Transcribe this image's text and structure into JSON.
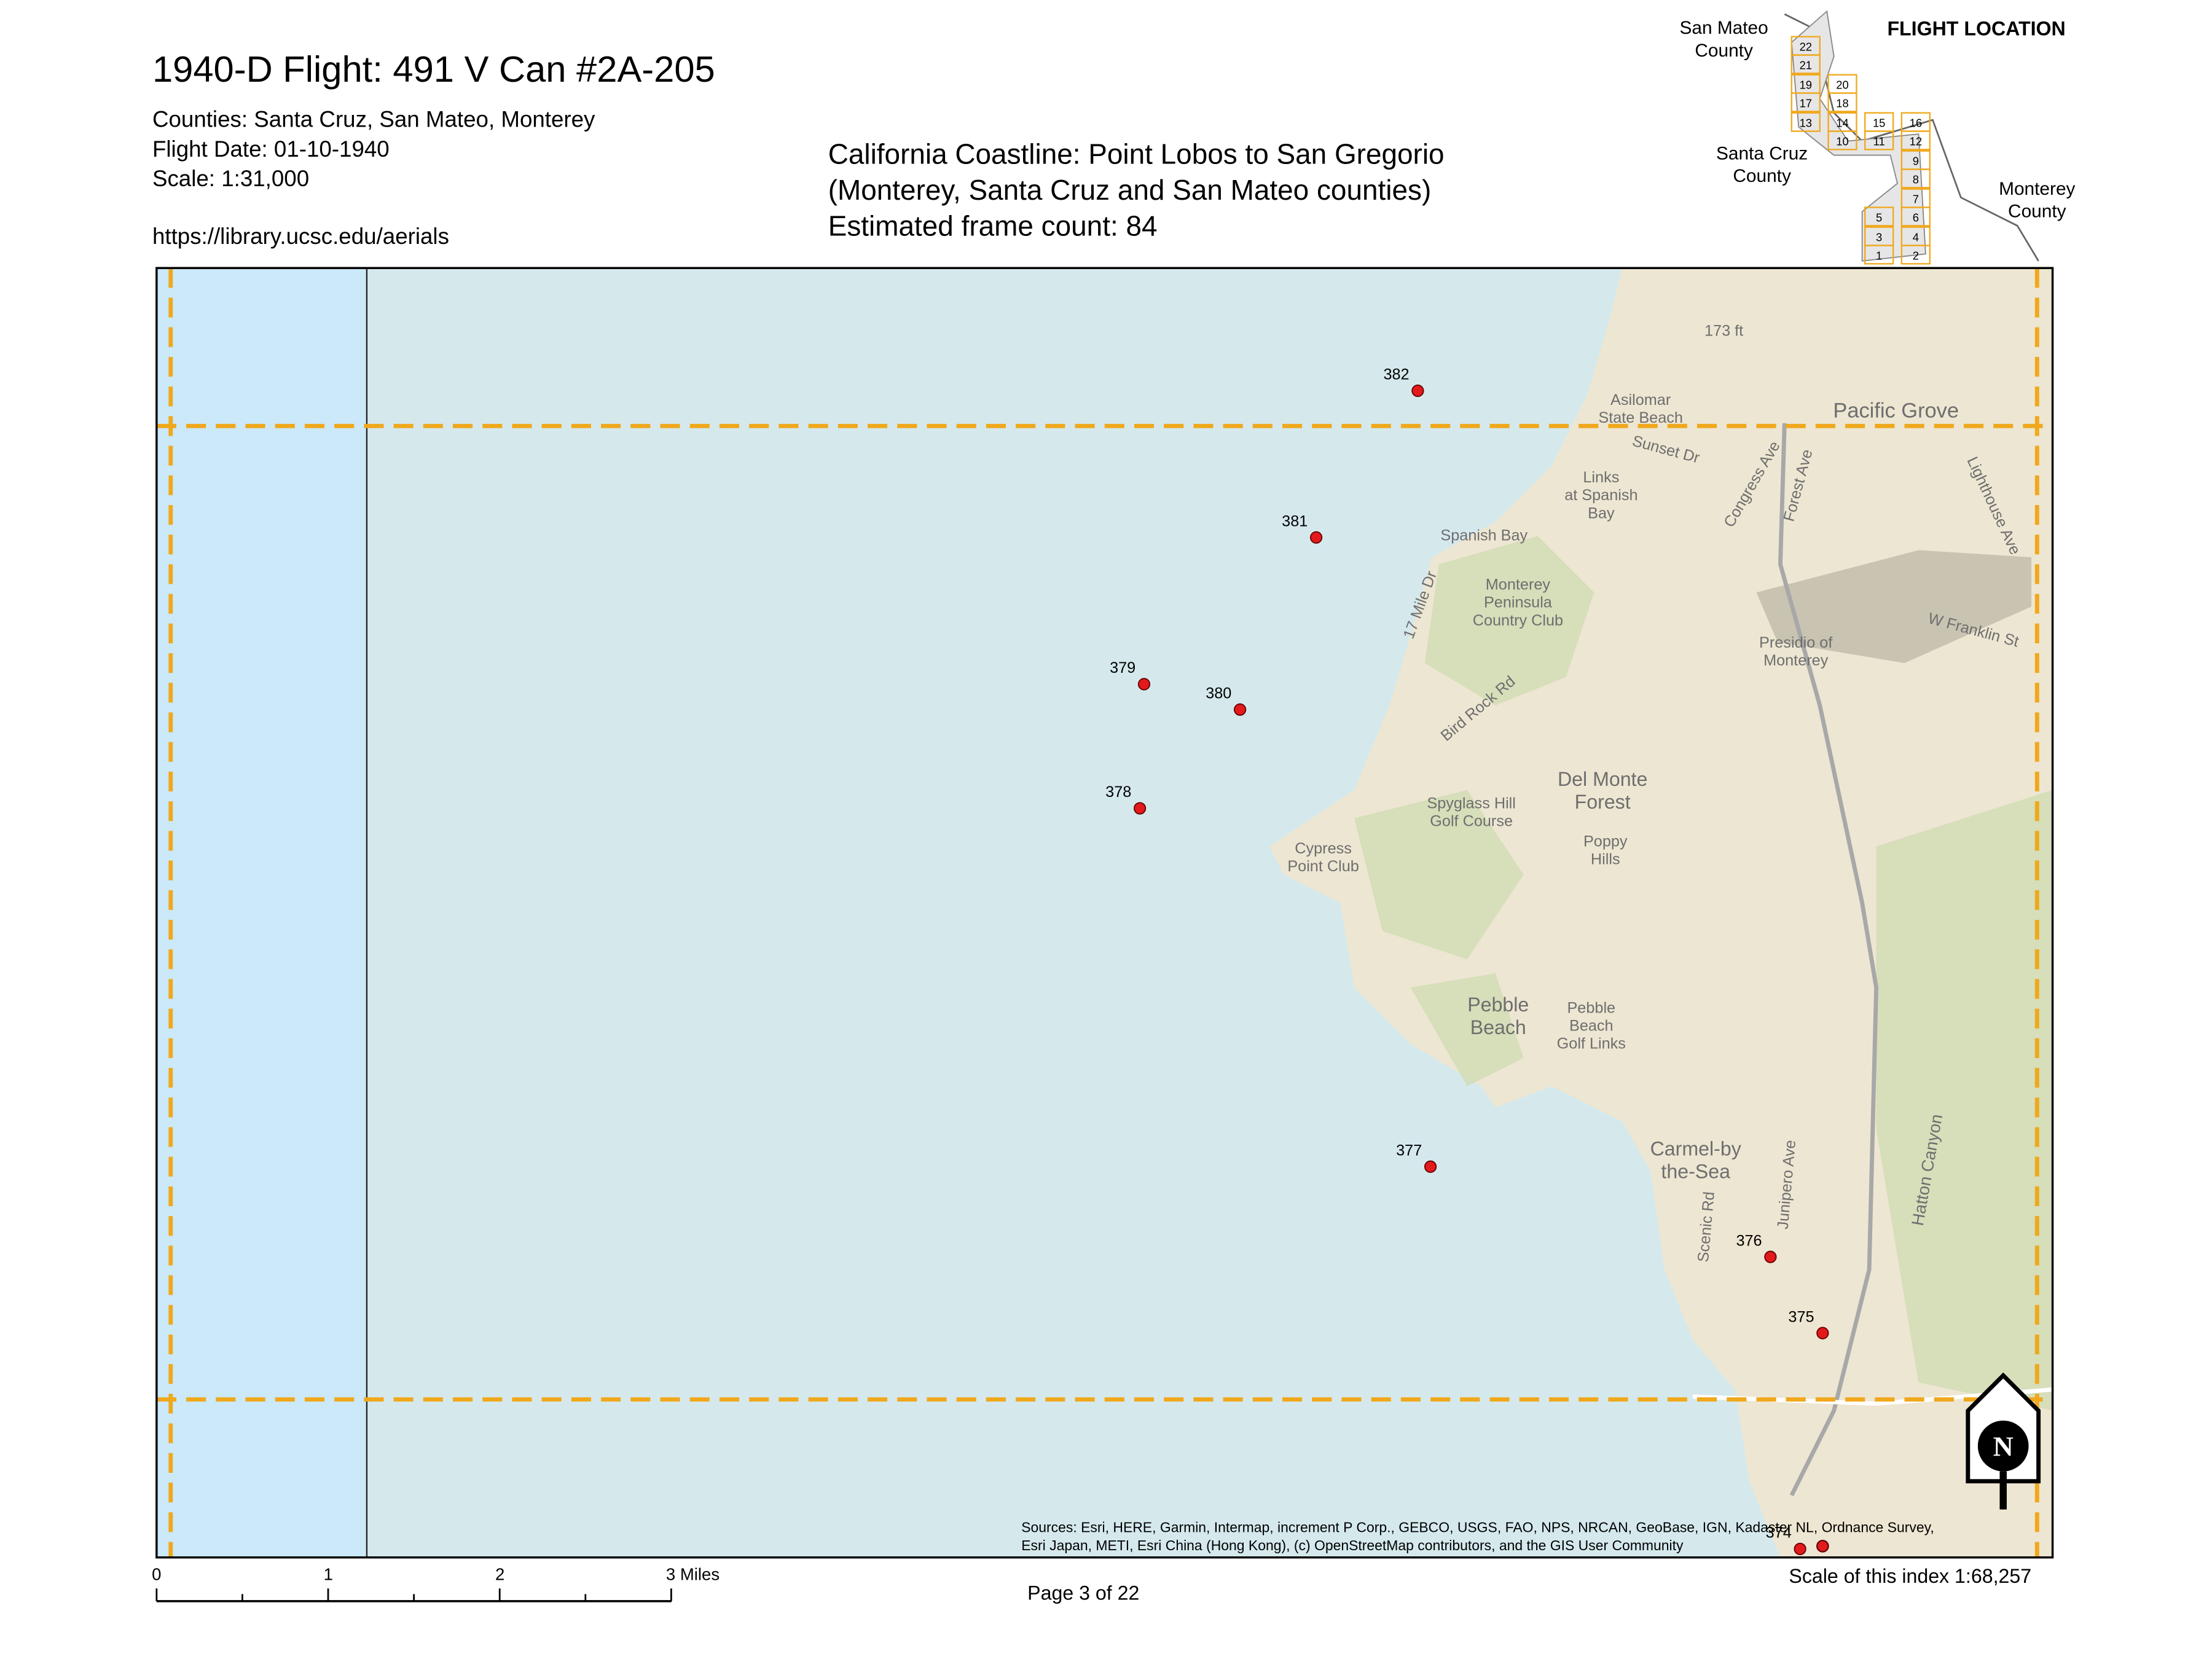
{
  "header": {
    "title": "1940-D Flight: 491 V Can #2A-205",
    "lines": [
      "Counties: Santa Cruz, San Mateo, Monterey",
      "Flight Date: 01-10-1940",
      "Scale: 1:31,000"
    ],
    "url": "https://library.ucsc.edu/aerials"
  },
  "description": [
    "California Coastline: Point Lobos to San Gregorio",
    "(Monterey, Santa Cruz and San Mateo counties)",
    "Estimated frame count: 84"
  ],
  "index_map": {
    "title": "FLIGHT LOCATION",
    "counties": [
      [
        "San Mateo",
        "County"
      ],
      [
        "Santa Cruz",
        "County"
      ],
      [
        "Monterey",
        "County"
      ]
    ],
    "tiles": [
      "22",
      "21",
      "19",
      "17",
      "13",
      "20",
      "18",
      "14",
      "10",
      "15",
      "11",
      "16",
      "12",
      "9",
      "8",
      "7",
      "6",
      "4",
      "2",
      "5",
      "3",
      "1"
    ]
  },
  "frames": [
    "382",
    "381",
    "379",
    "380",
    "378",
    "377",
    "376",
    "375",
    "374"
  ],
  "map_labels": [
    [
      "Pacific Grove"
    ],
    [
      "Asilomar",
      "State Beach"
    ],
    [
      "Links",
      "at Spanish",
      "Bay"
    ],
    [
      "Spanish Bay"
    ],
    [
      "Monterey",
      "Peninsula",
      "Country Club"
    ],
    [
      "Presidio of",
      "Monterey"
    ],
    [
      "Del Monte",
      "Forest"
    ],
    [
      "Spyglass Hill",
      "Golf Course"
    ],
    [
      "Poppy",
      "Hills"
    ],
    [
      "Cypress",
      "Point Club"
    ],
    [
      "Pebble",
      "Beach"
    ],
    [
      "Pebble",
      "Beach",
      "Golf Links"
    ],
    [
      "Carmel-by",
      "the-Sea"
    ],
    [
      "17 Mile Dr"
    ],
    [
      "Bird Rock Rd"
    ],
    [
      "Forest Ave"
    ],
    [
      "Lighthouse Ave"
    ],
    [
      "W Franklin St"
    ],
    [
      "Sunset Dr"
    ],
    [
      "Congress Ave"
    ],
    [
      "Hatton Canyon"
    ],
    [
      "Scenic Rd"
    ],
    [
      "Junipero Ave"
    ],
    [
      "173 ft"
    ]
  ],
  "scale_bar": [
    "0",
    "1",
    "2",
    "3 Miles"
  ],
  "sources": [
    "Sources: Esri, HERE, Garmin, Intermap, increment P Corp., GEBCO, USGS, FAO, NPS, NRCAN, GeoBase, IGN, Kadaster NL, Ordnance Survey,",
    "Esri Japan, METI, Esri China (Hong Kong), (c) OpenStreetMap contributors, and the GIS User Community"
  ],
  "north_arrow": "N",
  "footer": {
    "page": "Page 3 of 22",
    "index_scale": "Scale of this index 1:68,257"
  }
}
